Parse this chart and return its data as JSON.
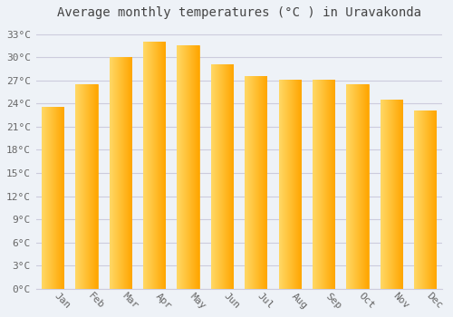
{
  "title": "Average monthly temperatures (°C ) in Uravakonda",
  "months": [
    "Jan",
    "Feb",
    "Mar",
    "Apr",
    "May",
    "Jun",
    "Jul",
    "Aug",
    "Sep",
    "Oct",
    "Nov",
    "Dec"
  ],
  "values": [
    23.5,
    26.5,
    30.0,
    32.0,
    31.5,
    29.0,
    27.5,
    27.0,
    27.0,
    26.5,
    24.5,
    23.0
  ],
  "bar_color_left": "#FFD966",
  "bar_color_right": "#FFA500",
  "background_color": "#EEF2F7",
  "plot_bg_color": "#EEF2F7",
  "grid_color": "#CCCCDD",
  "ylim": [
    0,
    34
  ],
  "yticks": [
    0,
    3,
    6,
    9,
    12,
    15,
    18,
    21,
    24,
    27,
    30,
    33
  ],
  "ytick_labels": [
    "0°C",
    "3°C",
    "6°C",
    "9°C",
    "12°C",
    "15°C",
    "18°C",
    "21°C",
    "24°C",
    "27°C",
    "30°C",
    "33°C"
  ],
  "title_fontsize": 10,
  "tick_fontsize": 8,
  "title_color": "#444444",
  "tick_color": "#666666",
  "bar_width": 0.65,
  "xlabel_rotation": -45
}
